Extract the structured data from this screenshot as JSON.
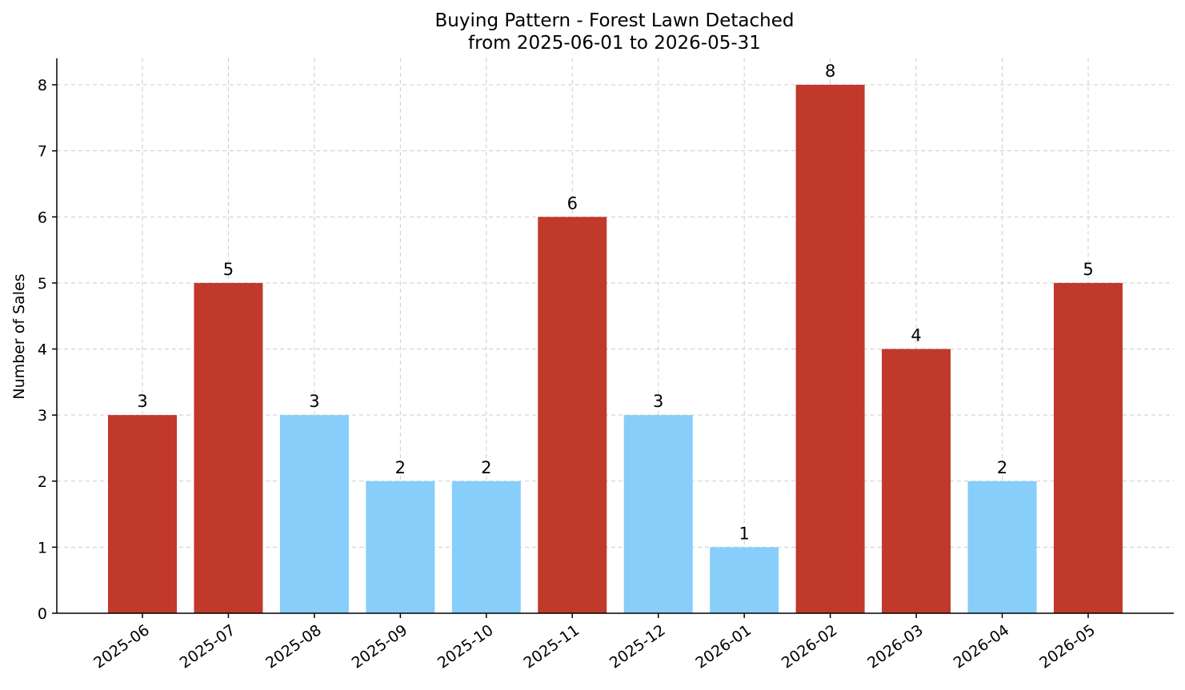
{
  "chart_data": {
    "type": "bar",
    "title": "Buying Pattern - Forest Lawn Detached",
    "subtitle": "from 2025-06-01 to 2026-05-31",
    "xlabel": "",
    "ylabel": "Number of Sales",
    "ylim": [
      0,
      8.4
    ],
    "yticks": [
      0,
      1,
      2,
      3,
      4,
      5,
      6,
      7,
      8
    ],
    "grid": true,
    "categories": [
      "2025-06",
      "2025-07",
      "2025-08",
      "2025-09",
      "2025-10",
      "2025-11",
      "2025-12",
      "2026-01",
      "2026-02",
      "2026-03",
      "2026-04",
      "2026-05"
    ],
    "values": [
      3,
      5,
      3,
      2,
      2,
      6,
      3,
      1,
      8,
      4,
      2,
      5
    ],
    "bar_colors": [
      "#c0392b",
      "#c0392b",
      "#87cefa",
      "#87cefa",
      "#87cefa",
      "#c0392b",
      "#87cefa",
      "#87cefa",
      "#c0392b",
      "#c0392b",
      "#87cefa",
      "#c0392b"
    ]
  }
}
